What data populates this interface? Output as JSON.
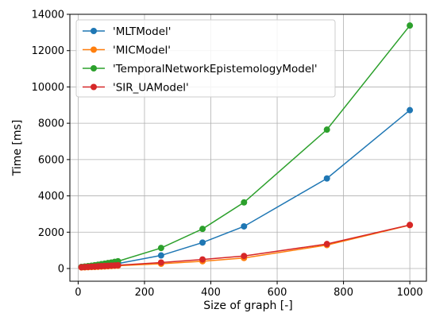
{
  "chart_data": {
    "type": "line",
    "title": "",
    "xlabel": "Size of graph [-]",
    "ylabel": "Time [ms]",
    "xlim": [
      -25,
      1050
    ],
    "ylim": [
      -700,
      14000
    ],
    "xticks": [
      0,
      200,
      400,
      600,
      800,
      1000
    ],
    "yticks": [
      0,
      2000,
      4000,
      6000,
      8000,
      10000,
      12000,
      14000
    ],
    "grid": true,
    "legend_position": "top-left",
    "x": [
      10,
      20,
      30,
      40,
      50,
      60,
      70,
      80,
      90,
      100,
      110,
      120,
      250,
      375,
      500,
      750,
      1000
    ],
    "series": [
      {
        "name": "'MLTModel'",
        "color": "#1f77b4",
        "values": [
          80,
          95,
          110,
          125,
          140,
          160,
          180,
          200,
          215,
          235,
          255,
          275,
          720,
          1430,
          2320,
          4960,
          8720
        ]
      },
      {
        "name": "'MICModel'",
        "color": "#ff7f0e",
        "values": [
          60,
          65,
          72,
          80,
          88,
          95,
          105,
          115,
          125,
          135,
          145,
          155,
          260,
          400,
          580,
          1290,
          2390
        ]
      },
      {
        "name": "'TemporalNetworkEpistemologyModel'",
        "color": "#2ca02c",
        "values": [
          90,
          110,
          130,
          155,
          180,
          210,
          240,
          270,
          300,
          330,
          365,
          400,
          1130,
          2180,
          3640,
          7650,
          13380
        ]
      },
      {
        "name": "'SIR_UAModel'",
        "color": "#d62728",
        "values": [
          70,
          80,
          90,
          100,
          110,
          120,
          130,
          140,
          150,
          160,
          170,
          180,
          330,
          500,
          690,
          1350,
          2400
        ]
      }
    ]
  }
}
